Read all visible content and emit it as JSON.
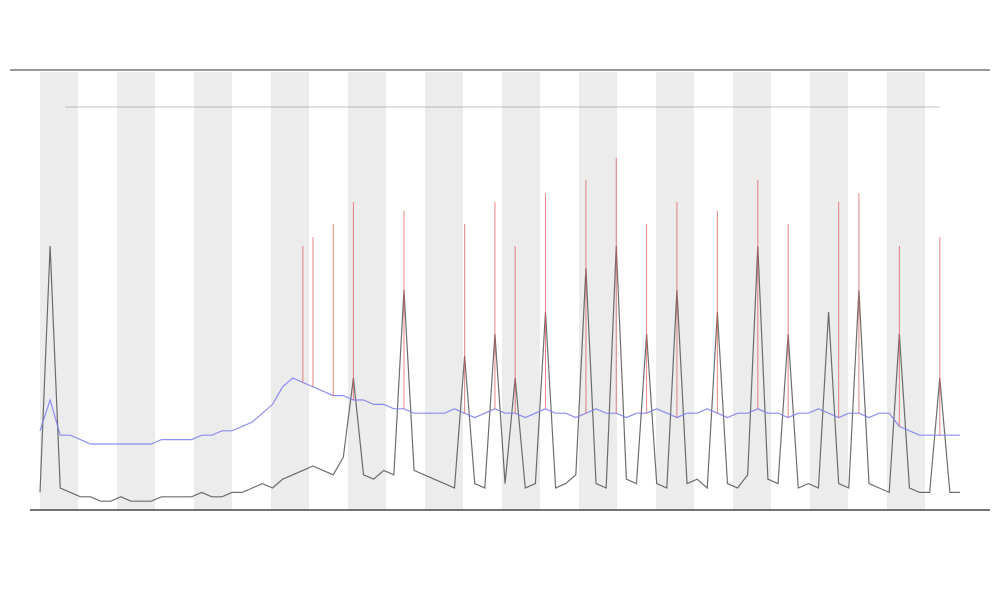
{
  "chart_data": {
    "type": "line",
    "x": [
      0,
      1,
      2,
      3,
      4,
      5,
      6,
      7,
      8,
      9,
      10,
      11,
      12,
      13,
      14,
      15,
      16,
      17,
      18,
      19,
      20,
      21,
      22,
      23,
      24,
      25,
      26,
      27,
      28,
      29,
      30,
      31,
      32,
      33,
      34,
      35,
      36,
      37,
      38,
      39,
      40,
      41,
      42,
      43,
      44,
      45,
      46,
      47,
      48,
      49,
      50,
      51,
      52,
      53,
      54,
      55,
      56,
      57,
      58,
      59,
      60,
      61,
      62,
      63,
      64,
      65,
      66,
      67,
      68,
      69,
      70,
      71,
      72,
      73,
      74,
      75,
      76,
      77,
      78,
      79,
      80,
      81,
      82,
      83,
      84,
      85,
      86,
      87,
      88,
      89,
      90,
      91
    ],
    "xlim": [
      0,
      91
    ],
    "ylim": [
      0,
      100
    ],
    "series": [
      {
        "color": "#555555",
        "values": [
          4,
          60,
          5,
          4,
          3,
          3,
          2,
          2,
          3,
          2,
          2,
          2,
          3,
          3,
          3,
          3,
          4,
          3,
          3,
          4,
          4,
          5,
          6,
          5,
          7,
          8,
          9,
          10,
          9,
          8,
          12,
          30,
          8,
          7,
          9,
          8,
          50,
          9,
          8,
          7,
          6,
          5,
          35,
          6,
          5,
          40,
          6,
          30,
          5,
          6,
          45,
          5,
          6,
          8,
          55,
          6,
          5,
          60,
          7,
          6,
          40,
          6,
          5,
          50,
          6,
          7,
          5,
          45,
          6,
          5,
          8,
          60,
          7,
          6,
          40,
          5,
          6,
          5,
          45,
          6,
          5,
          50,
          6,
          5,
          4,
          40,
          5,
          4,
          4,
          30,
          4,
          4
        ]
      },
      {
        "color": "#7b7bf0",
        "values": [
          18,
          25,
          17,
          17,
          16,
          15,
          15,
          15,
          15,
          15,
          15,
          15,
          16,
          16,
          16,
          16,
          17,
          17,
          18,
          18,
          19,
          20,
          22,
          24,
          28,
          30,
          29,
          28,
          27,
          26,
          26,
          25,
          25,
          24,
          24,
          23,
          23,
          22,
          22,
          22,
          22,
          23,
          22,
          21,
          22,
          23,
          22,
          22,
          21,
          22,
          23,
          22,
          22,
          21,
          22,
          23,
          22,
          22,
          21,
          22,
          22,
          23,
          22,
          21,
          22,
          22,
          23,
          22,
          21,
          22,
          22,
          23,
          22,
          22,
          21,
          22,
          22,
          23,
          22,
          21,
          22,
          22,
          21,
          22,
          22,
          19,
          18,
          17,
          17,
          17,
          17,
          17
        ]
      },
      {
        "color": "#e05050",
        "values": [
          null,
          null,
          null,
          null,
          null,
          null,
          null,
          null,
          null,
          null,
          null,
          null,
          null,
          null,
          null,
          null,
          null,
          null,
          null,
          null,
          null,
          null,
          null,
          null,
          null,
          null,
          60,
          62,
          null,
          65,
          null,
          70,
          null,
          null,
          null,
          null,
          68,
          null,
          null,
          null,
          null,
          null,
          65,
          null,
          null,
          70,
          null,
          60,
          null,
          null,
          72,
          null,
          null,
          null,
          75,
          null,
          null,
          80,
          null,
          null,
          65,
          null,
          null,
          70,
          null,
          null,
          null,
          68,
          null,
          null,
          null,
          75,
          null,
          null,
          65,
          null,
          null,
          null,
          null,
          70,
          null,
          72,
          null,
          null,
          null,
          60,
          null,
          null,
          null,
          62,
          null,
          null
        ]
      }
    ]
  }
}
